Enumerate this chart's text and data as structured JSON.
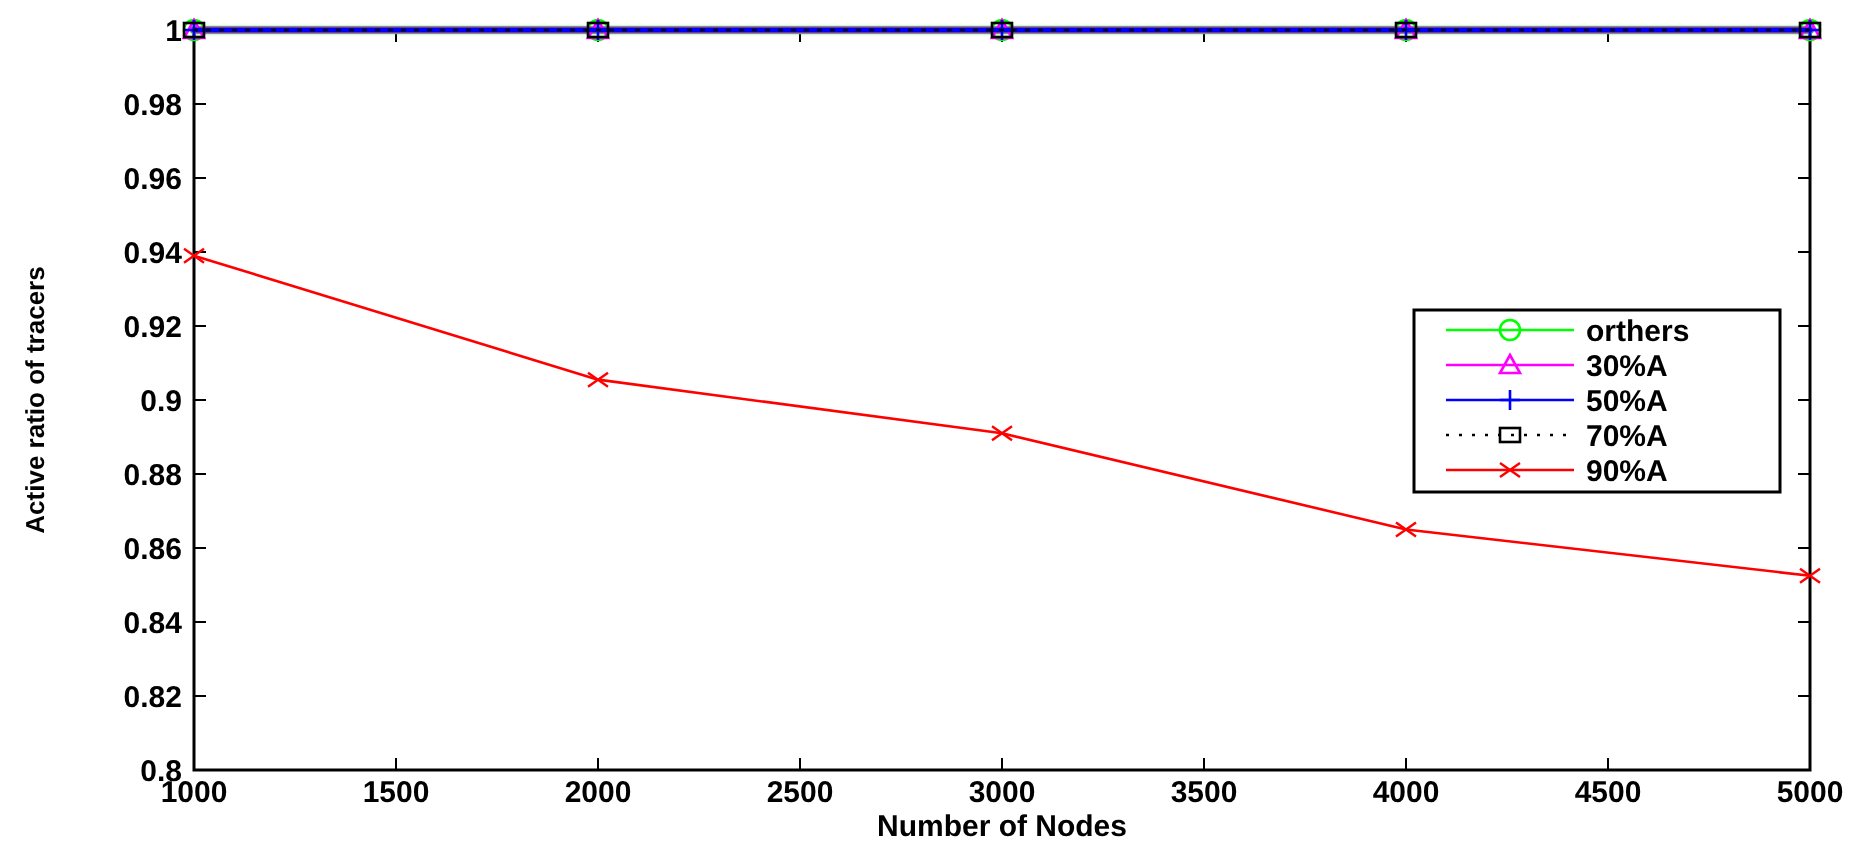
{
  "chart_data": {
    "type": "line",
    "xlabel": "Number of Nodes",
    "ylabel": "Active ratio of tracers",
    "x": [
      1000,
      2000,
      3000,
      4000,
      5000
    ],
    "series": [
      {
        "name": "orthers",
        "color": "#00ff00",
        "values": [
          1,
          1,
          1,
          1,
          1
        ],
        "marker": "circle",
        "line_style": "solid"
      },
      {
        "name": "30%A",
        "color": "#ff00ff",
        "values": [
          1,
          1,
          1,
          1,
          1
        ],
        "marker": "triangle",
        "line_style": "solid"
      },
      {
        "name": "50%A",
        "color": "#0000ff",
        "values": [
          1,
          1,
          1,
          1,
          1
        ],
        "marker": "cross",
        "line_style": "solid"
      },
      {
        "name": "70%A",
        "color": "#000000",
        "values": [
          1,
          1,
          1,
          1,
          1
        ],
        "marker": "square",
        "line_style": "dotted"
      },
      {
        "name": "90%A",
        "color": "#ff0000",
        "values": [
          0.939,
          0.9055,
          0.891,
          0.865,
          0.8525
        ],
        "marker": "x",
        "line_style": "solid"
      }
    ],
    "xlim": [
      1000,
      5000
    ],
    "xticks": [
      1000,
      1500,
      2000,
      2500,
      3000,
      3500,
      4000,
      4500,
      5000
    ],
    "ylim": [
      0.8,
      1
    ],
    "yticks": [
      0.8,
      0.82,
      0.84,
      0.86,
      0.88,
      0.9,
      0.92,
      0.94,
      0.96,
      0.98,
      1
    ],
    "grid": false,
    "legend": "right"
  }
}
